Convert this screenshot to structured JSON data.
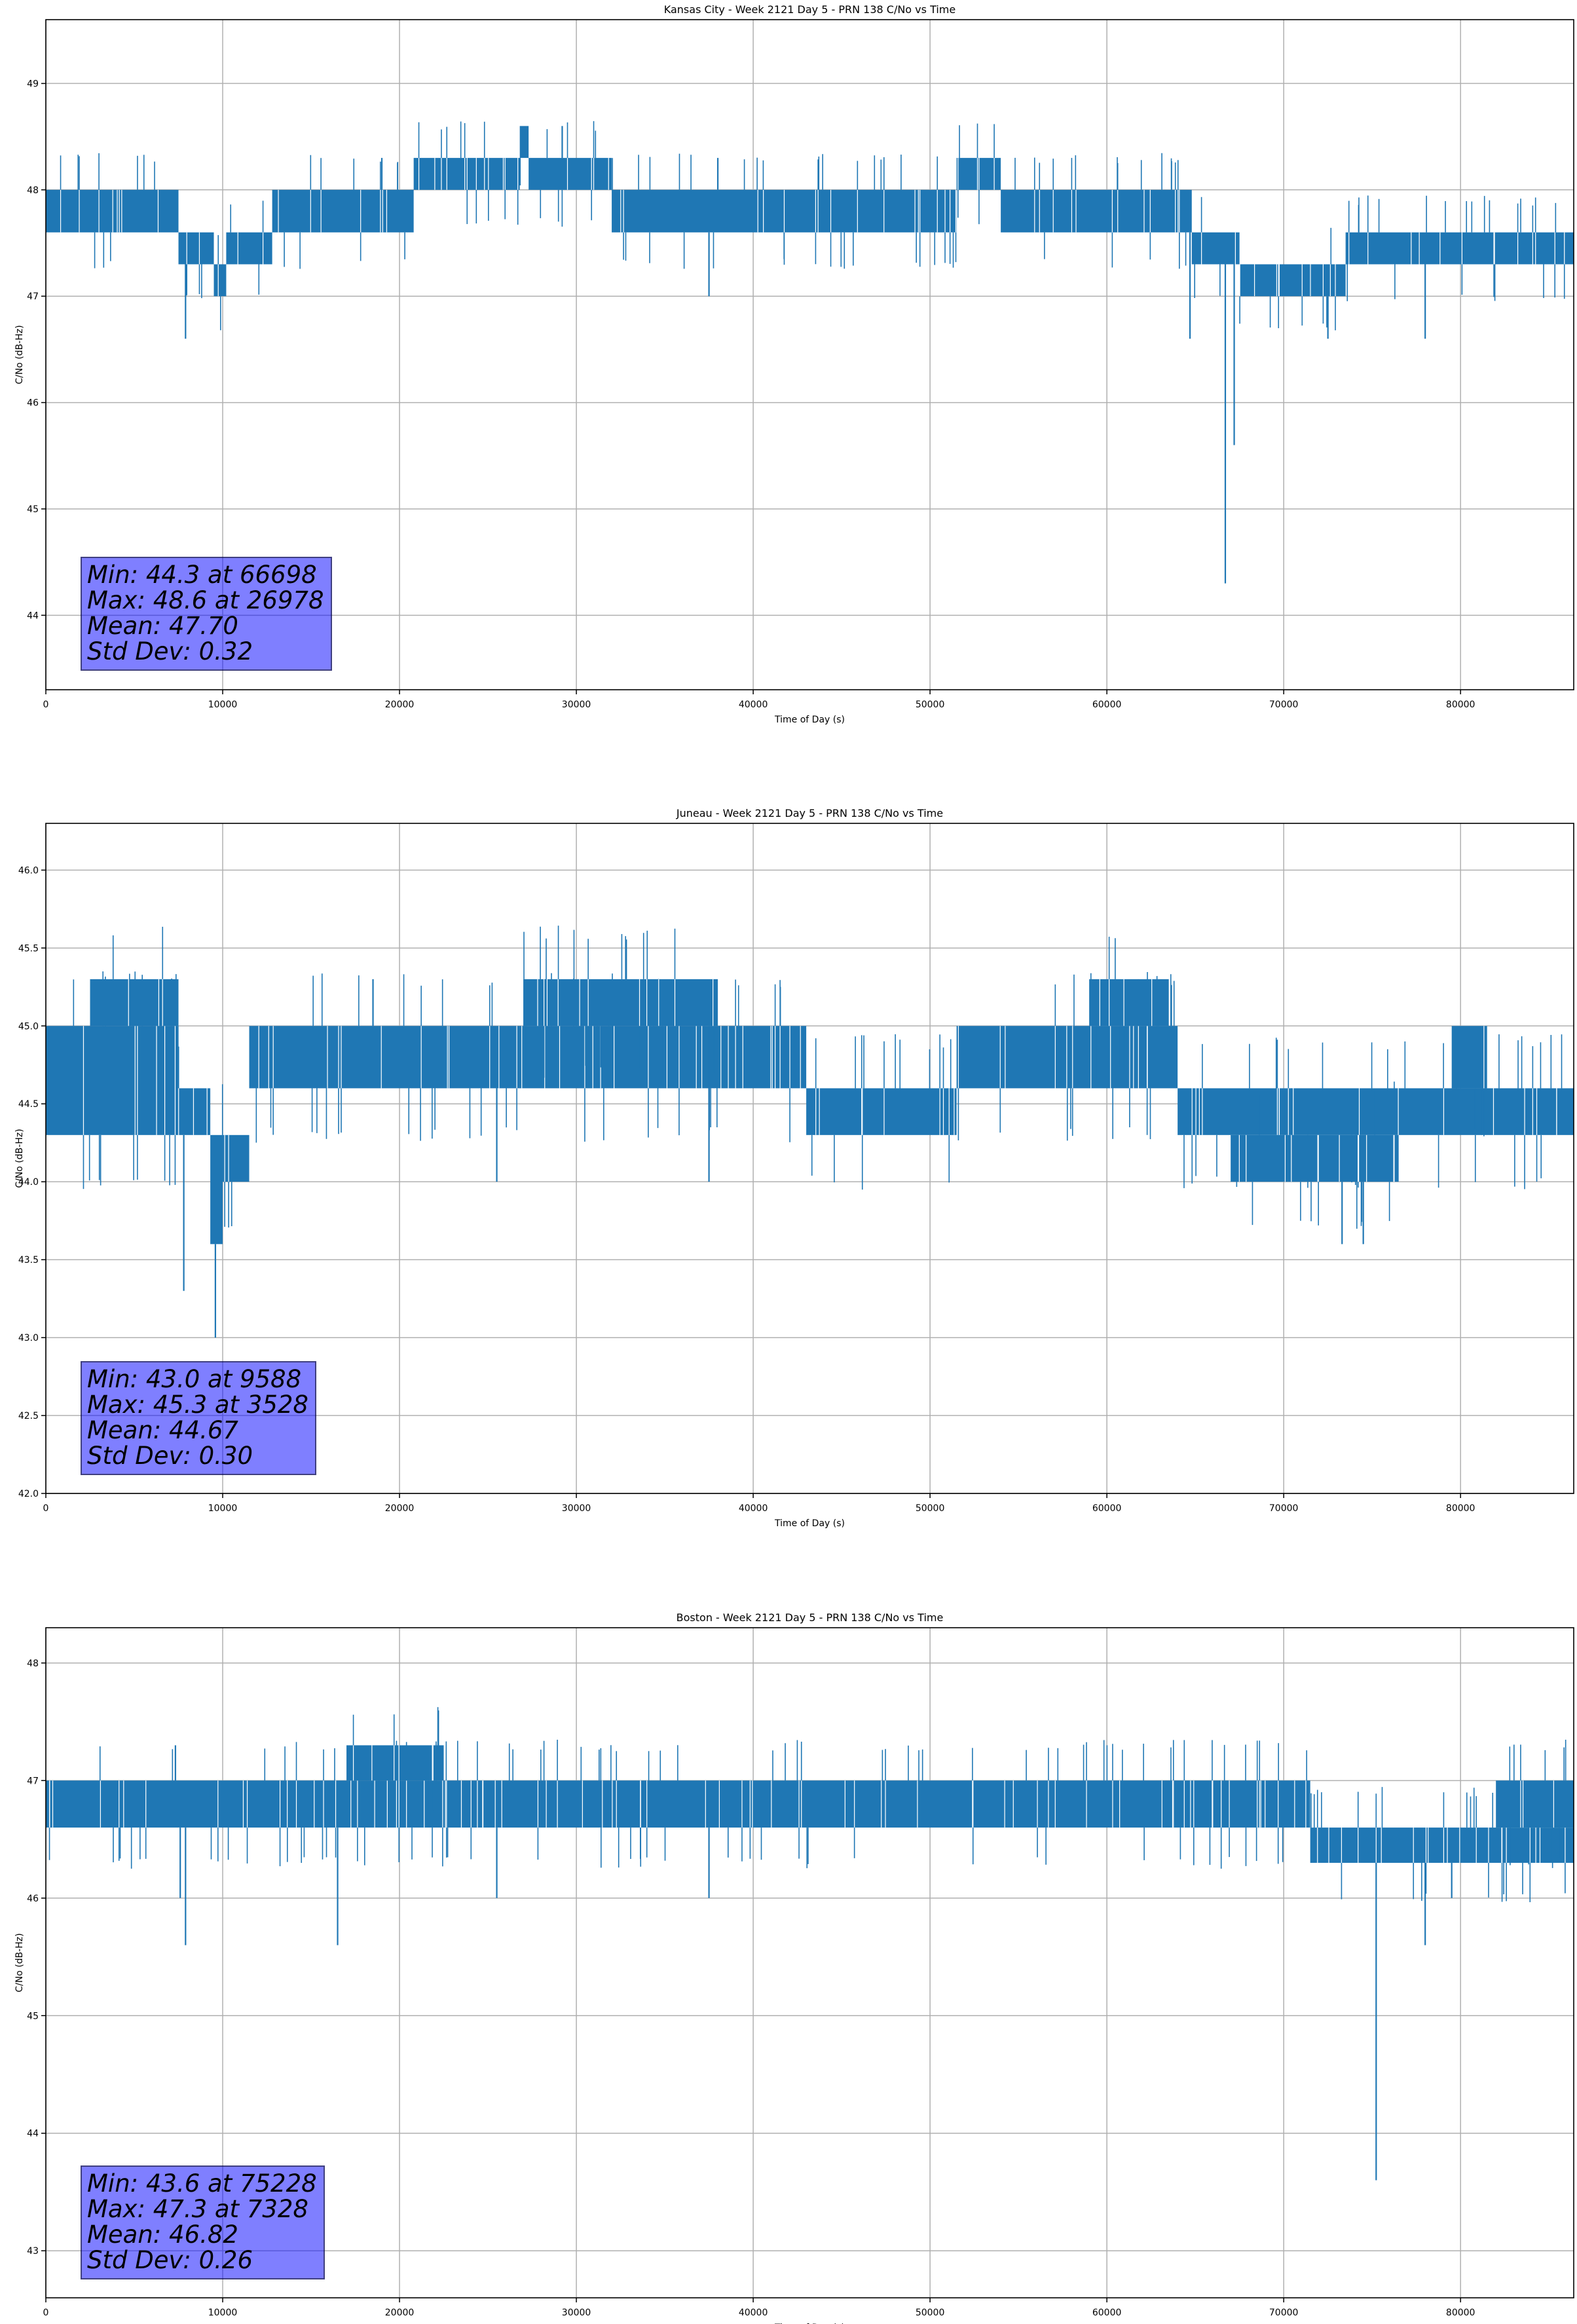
{
  "colors": {
    "series": "#1f77b4",
    "grid": "#b0b0b0",
    "box_fill": "#8080ff"
  },
  "chart_data": [
    {
      "type": "line",
      "title": "Kansas City - Week 2121 Day 5 - PRN 138 C/No vs Time",
      "xlabel": "Time of Day (s)",
      "ylabel": "C/No (dB-Hz)",
      "xlim": [
        0,
        86400
      ],
      "ylim": [
        43.3,
        49.6
      ],
      "xticks": [
        0,
        10000,
        20000,
        30000,
        40000,
        50000,
        60000,
        70000,
        80000
      ],
      "xtick_labels": [
        "0",
        "10000",
        "20000",
        "30000",
        "40000",
        "50000",
        "60000",
        "70000",
        "80000"
      ],
      "yticks": [
        44,
        45,
        46,
        47,
        48,
        49
      ],
      "ytick_labels": [
        "44",
        "45",
        "46",
        "47",
        "48",
        "49"
      ],
      "grid": true,
      "stats": [
        "Min: 44.3 at 66698",
        "Max: 48.6 at 26978",
        "Mean: 47.70",
        "Std Dev: 0.32"
      ],
      "segments": [
        {
          "x0": 0,
          "x1": 7500,
          "low": 47.6,
          "high": 48.0
        },
        {
          "x0": 7500,
          "x1": 9500,
          "low": 47.3,
          "high": 47.6
        },
        {
          "x0": 9500,
          "x1": 10200,
          "low": 47.0,
          "high": 47.3
        },
        {
          "x0": 10200,
          "x1": 12800,
          "low": 47.3,
          "high": 47.6
        },
        {
          "x0": 12800,
          "x1": 20800,
          "low": 47.6,
          "high": 48.0
        },
        {
          "x0": 20800,
          "x1": 26800,
          "low": 48.0,
          "high": 48.3
        },
        {
          "x0": 26800,
          "x1": 27300,
          "low": 48.3,
          "high": 48.6
        },
        {
          "x0": 27300,
          "x1": 32000,
          "low": 48.0,
          "high": 48.3
        },
        {
          "x0": 32000,
          "x1": 51500,
          "low": 47.6,
          "high": 48.0
        },
        {
          "x0": 51500,
          "x1": 54000,
          "low": 48.0,
          "high": 48.3
        },
        {
          "x0": 54000,
          "x1": 64800,
          "low": 47.6,
          "high": 48.0
        },
        {
          "x0": 64800,
          "x1": 67500,
          "low": 47.3,
          "high": 47.6
        },
        {
          "x0": 67500,
          "x1": 73500,
          "low": 47.0,
          "high": 47.3
        },
        {
          "x0": 73500,
          "x1": 86400,
          "low": 47.3,
          "high": 47.6
        }
      ],
      "spikes": [
        {
          "x": 7900,
          "y": 46.6
        },
        {
          "x": 37500,
          "y": 47.0
        },
        {
          "x": 64700,
          "y": 46.6
        },
        {
          "x": 66698,
          "y": 44.3
        },
        {
          "x": 67200,
          "y": 45.6
        },
        {
          "x": 72500,
          "y": 46.6
        },
        {
          "x": 78000,
          "y": 46.6
        },
        {
          "x": 26978,
          "y": 48.6
        },
        {
          "x": 29200,
          "y": 48.6
        },
        {
          "x": 19000,
          "y": 48.3
        },
        {
          "x": 38000,
          "y": 48.3
        }
      ]
    },
    {
      "type": "line",
      "title": "Juneau - Week 2121 Day 5 - PRN 138 C/No vs Time",
      "xlabel": "Time of Day (s)",
      "ylabel": "C/No (dB-Hz)",
      "xlim": [
        0,
        86400
      ],
      "ylim": [
        42.0,
        46.3
      ],
      "xticks": [
        0,
        10000,
        20000,
        30000,
        40000,
        50000,
        60000,
        70000,
        80000
      ],
      "xtick_labels": [
        "0",
        "10000",
        "20000",
        "30000",
        "40000",
        "50000",
        "60000",
        "70000",
        "80000"
      ],
      "yticks": [
        42.0,
        42.5,
        43.0,
        43.5,
        44.0,
        44.5,
        45.0,
        45.5,
        46.0
      ],
      "ytick_labels": [
        "42.0",
        "42.5",
        "43.0",
        "43.5",
        "44.0",
        "44.5",
        "45.0",
        "45.5",
        "46.0"
      ],
      "grid": true,
      "stats": [
        "Min: 43.0 at 9588",
        "Max: 45.3 at 3528",
        "Mean: 44.67",
        "Std Dev: 0.30"
      ],
      "segments": [
        {
          "x0": 0,
          "x1": 7500,
          "low": 44.3,
          "high": 45.0
        },
        {
          "x0": 2500,
          "x1": 7500,
          "low": 45.0,
          "high": 45.3
        },
        {
          "x0": 7500,
          "x1": 9300,
          "low": 44.3,
          "high": 44.6
        },
        {
          "x0": 9300,
          "x1": 10000,
          "low": 43.6,
          "high": 44.3
        },
        {
          "x0": 10000,
          "x1": 11500,
          "low": 44.0,
          "high": 44.3
        },
        {
          "x0": 11500,
          "x1": 43000,
          "low": 44.6,
          "high": 45.0
        },
        {
          "x0": 27000,
          "x1": 38000,
          "low": 45.0,
          "high": 45.3
        },
        {
          "x0": 43000,
          "x1": 51500,
          "low": 44.3,
          "high": 44.6
        },
        {
          "x0": 51500,
          "x1": 64000,
          "low": 44.6,
          "high": 45.0
        },
        {
          "x0": 59000,
          "x1": 63500,
          "low": 45.0,
          "high": 45.3
        },
        {
          "x0": 64000,
          "x1": 86400,
          "low": 44.3,
          "high": 44.6
        },
        {
          "x0": 67000,
          "x1": 76500,
          "low": 44.0,
          "high": 44.3
        },
        {
          "x0": 79500,
          "x1": 81500,
          "low": 44.6,
          "high": 45.0
        }
      ],
      "spikes": [
        {
          "x": 7800,
          "y": 43.3
        },
        {
          "x": 9588,
          "y": 43.0
        },
        {
          "x": 25500,
          "y": 44.0
        },
        {
          "x": 37500,
          "y": 44.0
        },
        {
          "x": 73300,
          "y": 43.6
        },
        {
          "x": 74500,
          "y": 43.6
        },
        {
          "x": 3528,
          "y": 45.3
        },
        {
          "x": 18500,
          "y": 45.3
        }
      ]
    },
    {
      "type": "line",
      "title": "Boston - Week 2121 Day 5 - PRN 138 C/No vs Time",
      "xlabel": "Time of Day (s)",
      "ylabel": "C/No (dB-Hz)",
      "xlim": [
        0,
        86400
      ],
      "ylim": [
        42.6,
        48.3
      ],
      "xticks": [
        0,
        10000,
        20000,
        30000,
        40000,
        50000,
        60000,
        70000,
        80000
      ],
      "xtick_labels": [
        "0",
        "10000",
        "20000",
        "30000",
        "40000",
        "50000",
        "60000",
        "70000",
        "80000"
      ],
      "yticks": [
        43,
        44,
        45,
        46,
        47,
        48
      ],
      "ytick_labels": [
        "43",
        "44",
        "45",
        "46",
        "47",
        "48"
      ],
      "grid": true,
      "stats": [
        "Min: 43.6 at 75228",
        "Max: 47.3 at 7328",
        "Mean: 46.82",
        "Std Dev: 0.26"
      ],
      "segments": [
        {
          "x0": 0,
          "x1": 71500,
          "low": 46.6,
          "high": 47.0
        },
        {
          "x0": 17000,
          "x1": 22500,
          "low": 47.0,
          "high": 47.3
        },
        {
          "x0": 71500,
          "x1": 86400,
          "low": 46.3,
          "high": 46.6
        },
        {
          "x0": 82000,
          "x1": 86400,
          "low": 46.6,
          "high": 47.0
        }
      ],
      "spikes": [
        {
          "x": 7328,
          "y": 47.3
        },
        {
          "x": 7600,
          "y": 46.0
        },
        {
          "x": 7900,
          "y": 45.6
        },
        {
          "x": 16500,
          "y": 45.6
        },
        {
          "x": 25500,
          "y": 46.0
        },
        {
          "x": 37500,
          "y": 46.0
        },
        {
          "x": 75228,
          "y": 43.6
        },
        {
          "x": 78000,
          "y": 45.6
        },
        {
          "x": 79500,
          "y": 46.0
        }
      ]
    }
  ]
}
